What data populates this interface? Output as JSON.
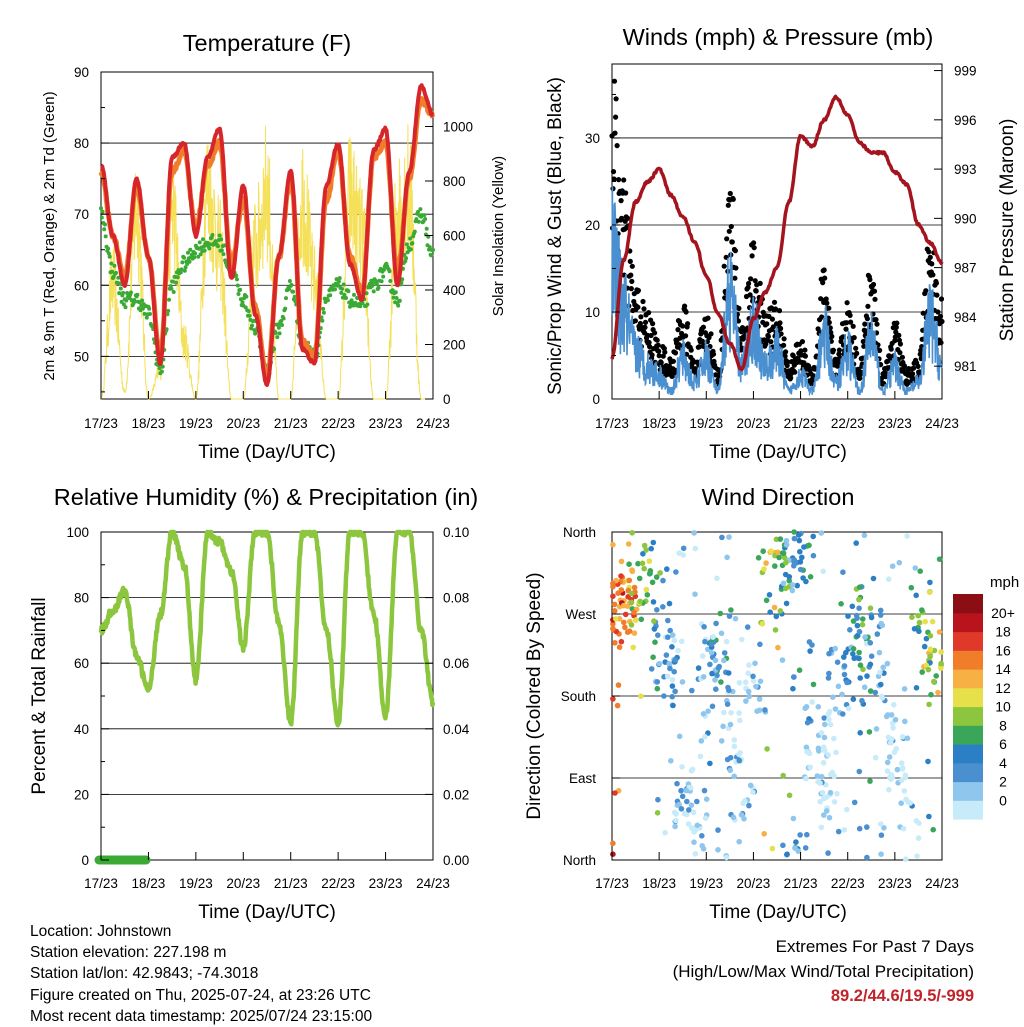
{
  "x_tick_labels": [
    "17/23",
    "18/23",
    "19/23",
    "20/23",
    "21/23",
    "22/23",
    "23/23",
    "24/23"
  ],
  "x_axis_title": "Time (Day/UTC)",
  "info": {
    "location": "Location: Johnstown",
    "elevation": "Station elevation: 227.198 m",
    "latlon": "Station lat/lon: 42.9843; -74.3018",
    "created": "Figure created on Thu, 2025-07-24, at 23:26 UTC",
    "recent": "Most recent data timestamp: 2025/07/24 23:15:00"
  },
  "extremes": {
    "title": "Extremes For Past 7 Days",
    "subtitle": "(High/Low/Max Wind/Total Precipitation)",
    "values": "89.2/44.6/19.5/-999"
  },
  "colors": {
    "temp_2m": "#d7262a",
    "temp_9m": "#f07d2a",
    "dewpoint": "#3aaa35",
    "solar": "#f5e05a",
    "wind_gust": "#000000",
    "wind_speed": "#4a90d0",
    "pressure": "#a3141e",
    "humidity": "#8cc63f",
    "precip": "#3aaa35"
  },
  "chart_data": [
    {
      "type": "line",
      "title": "Temperature (F)",
      "xlabel": "Time (Day/UTC)",
      "ylabel": "2m & 9m T (Red, Orange) & 2m Td (Green)",
      "ylabel_right": "Solar Insolation (Yellow)",
      "ylim": [
        44,
        90
      ],
      "yticks": [
        50,
        60,
        70,
        80,
        90
      ],
      "ylim_right": [
        0,
        1200
      ],
      "yticks_right": [
        0,
        200,
        400,
        600,
        800,
        1000
      ],
      "x": [
        0,
        0.25,
        0.5,
        0.75,
        1,
        1.25,
        1.5,
        1.75,
        2,
        2.25,
        2.5,
        2.75,
        3,
        3.25,
        3.5,
        3.75,
        4,
        4.25,
        4.5,
        4.75,
        5,
        5.25,
        5.5,
        5.75,
        6,
        6.25,
        6.5,
        6.75,
        7
      ],
      "series": [
        {
          "name": "2m T",
          "values": [
            77,
            67,
            60,
            75,
            64,
            49,
            78,
            80,
            67,
            78,
            82,
            61,
            74,
            56,
            46,
            64,
            76,
            51,
            49,
            74,
            80,
            63,
            58,
            79,
            82,
            60,
            76,
            88,
            84
          ]
        },
        {
          "name": "9m T",
          "values": [
            76,
            67,
            61,
            74,
            64,
            50,
            76,
            79,
            68,
            77,
            80,
            63,
            72,
            57,
            47,
            64,
            75,
            52,
            50,
            72,
            79,
            64,
            59,
            78,
            80,
            62,
            75,
            86,
            84
          ]
        },
        {
          "name": "2m Td",
          "values": [
            70,
            62,
            58,
            58,
            56,
            48,
            60,
            63,
            65,
            66,
            66,
            62,
            58,
            54,
            48,
            54,
            60,
            52,
            50,
            58,
            60,
            58,
            57,
            60,
            62,
            58,
            66,
            70,
            64
          ]
        },
        {
          "name": "Solar Insolation",
          "values": [
            0,
            500,
            30,
            830,
            0,
            120,
            820,
            250,
            0,
            900,
            650,
            0,
            0,
            650,
            900,
            0,
            0,
            880,
            500,
            0,
            0,
            870,
            700,
            0,
            0,
            800,
            900,
            0,
            0
          ]
        }
      ]
    },
    {
      "type": "line",
      "title": "Winds (mph) & Pressure (mb)",
      "xlabel": "Time (Day/UTC)",
      "ylabel": "Sonic/Prop Wind & Gust (Blue, Black)",
      "ylabel_right": "Station Pressure (Maroon)",
      "ylim": [
        0,
        38.5
      ],
      "yticks": [
        0,
        10,
        20,
        30
      ],
      "ylim_right": [
        979,
        999.4
      ],
      "yticks_right": [
        981,
        984,
        987,
        990,
        993,
        996,
        999
      ],
      "x": [
        0,
        0.25,
        0.5,
        0.75,
        1,
        1.25,
        1.5,
        1.75,
        2,
        2.25,
        2.5,
        2.75,
        3,
        3.25,
        3.5,
        3.75,
        4,
        4.25,
        4.5,
        4.75,
        5,
        5.25,
        5.5,
        5.75,
        6,
        6.25,
        6.5,
        6.75,
        7
      ],
      "series": [
        {
          "name": "Gust",
          "values": [
            34,
            22,
            12,
            9,
            6,
            4,
            10,
            4,
            9,
            3,
            23,
            8,
            16,
            9,
            10,
            4,
            6,
            3,
            14,
            4,
            10,
            4,
            14,
            3,
            8,
            3,
            4,
            17,
            10
          ]
        },
        {
          "name": "Wind",
          "values": [
            18,
            11,
            6,
            4,
            3,
            1,
            5,
            2,
            5,
            1,
            13,
            4,
            9,
            4,
            6,
            1,
            3,
            1,
            8,
            2,
            6,
            1,
            8,
            1,
            4,
            1,
            2,
            10,
            4
          ]
        },
        {
          "name": "Pressure",
          "values": [
            981.5,
            987.5,
            991.0,
            992.2,
            993.0,
            991.4,
            990.1,
            988.6,
            986.5,
            984.2,
            982.4,
            980.8,
            983.9,
            985.5,
            987.0,
            991.0,
            995.0,
            994.4,
            996.0,
            997.4,
            996.3,
            994.6,
            994.0,
            994.0,
            992.8,
            992.1,
            989.6,
            988.5,
            987.3
          ]
        }
      ]
    },
    {
      "type": "line",
      "title": "Relative Humidity (%) & Precipitation (in)",
      "xlabel": "Time (Day/UTC)",
      "ylabel": "Percent & Total Rainfall",
      "ylim": [
        0,
        100
      ],
      "yticks": [
        0,
        20,
        40,
        60,
        80,
        100
      ],
      "ylim_right": [
        0,
        0.1
      ],
      "yticks_right": [
        "0.00",
        "0.02",
        "0.04",
        "0.06",
        "0.08",
        "0.10"
      ],
      "x": [
        0,
        0.25,
        0.5,
        0.75,
        1,
        1.25,
        1.5,
        1.75,
        2,
        2.25,
        2.5,
        2.75,
        3,
        3.25,
        3.5,
        3.75,
        4,
        4.25,
        4.5,
        4.75,
        5,
        5.25,
        5.5,
        5.75,
        6,
        6.25,
        6.5,
        6.75,
        7
      ],
      "series": [
        {
          "name": "Relative Humidity",
          "values": [
            70,
            76,
            82,
            62,
            52,
            75,
            100,
            90,
            55,
            100,
            97,
            88,
            65,
            100,
            100,
            72,
            42,
            100,
            100,
            70,
            42,
            100,
            100,
            75,
            44,
            100,
            100,
            70,
            48
          ]
        },
        {
          "name": "Total Precipitation",
          "x": [
            0,
            1
          ],
          "values": [
            0,
            0
          ]
        }
      ]
    },
    {
      "type": "scatter",
      "title": "Wind Direction",
      "xlabel": "Time (Day/UTC)",
      "ylabel": "Direction (Colored By Speed)",
      "yticks": [
        "North",
        "East",
        "South",
        "West",
        "North"
      ],
      "ylim": [
        0,
        360
      ],
      "colorbar_title": "mph",
      "colorbar_labels": [
        "0",
        "2",
        "4",
        "6",
        "8",
        "10",
        "12",
        "14",
        "16",
        "18",
        "20+"
      ],
      "colorbar_colors": [
        "#c8ebfa",
        "#8ec6ee",
        "#4a90d0",
        "#2b7fc4",
        "#3aa65a",
        "#8cc63f",
        "#e6e04a",
        "#f7b043",
        "#f07d2a",
        "#e0392a",
        "#b9141e",
        "#8a0e12"
      ],
      "x": [
        0.05,
        0.3,
        0.55,
        0.8,
        1.05,
        1.3,
        1.55,
        1.8,
        2.05,
        2.3,
        2.55,
        2.8,
        3.05,
        3.3,
        3.55,
        3.8,
        4.05,
        4.3,
        4.55,
        4.8,
        5.05,
        5.3,
        5.55,
        5.8,
        6.05,
        6.3,
        6.55,
        6.8
      ],
      "direction": [
        273,
        278,
        292,
        305,
        240,
        210,
        60,
        40,
        200,
        230,
        140,
        70,
        190,
        295,
        310,
        340,
        350,
        130,
        80,
        190,
        240,
        260,
        230,
        150,
        120,
        30,
        260,
        240
      ],
      "speed": [
        18,
        16,
        12,
        10,
        6,
        4,
        2,
        3,
        4,
        6,
        3,
        2,
        3,
        12,
        9,
        5,
        7,
        2,
        1,
        3,
        6,
        8,
        4,
        2,
        1,
        2,
        9,
        12
      ]
    }
  ]
}
